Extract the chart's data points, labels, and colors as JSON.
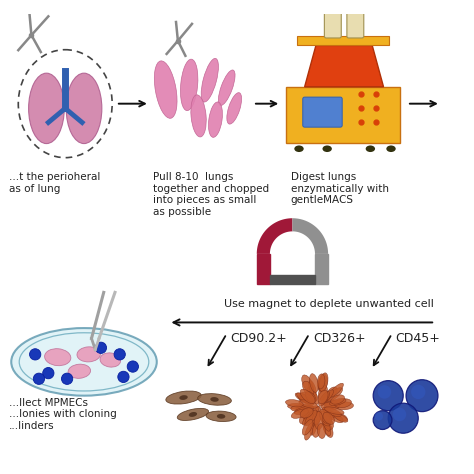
{
  "bg_color": "#ffffff",
  "step1_text": "...t the perioheral\nas of lung",
  "step2_text": "Pull 8-10  lungs\ntogether and chopped\ninto pieces as small\nas possible",
  "step3_text": "Digest lungs\nenzymatically with\ngentleMACS",
  "magnet_text": "Use magnet to deplete unwanted cell",
  "cd1_label": "CD90.2+",
  "cd2_label": "CD326+",
  "cd3_label": "CD45+",
  "bottom_text": "...llect MPMECs\n...lonies with cloning\n...linders",
  "text_color": "#222222",
  "font_size": 7.0,
  "label_font_size": 9.0,
  "lung_pink": "#d080a8",
  "lung_blue": "#3060b0",
  "machine_orange": "#f0b020",
  "machine_red": "#e04010",
  "machine_dark_orange": "#c87010",
  "magnet_red": "#a01838",
  "magnet_gray": "#909090",
  "cell_brown": "#8a5030",
  "cell_orange": "#c05828",
  "cell_blue_dark": "#1a3a9a",
  "cell_blue_mid": "#3258c0",
  "petri_fill": "#d8f0f5",
  "petri_edge": "#5090a8",
  "pink_piece": "#e080b0",
  "scissors_color": "#888888"
}
